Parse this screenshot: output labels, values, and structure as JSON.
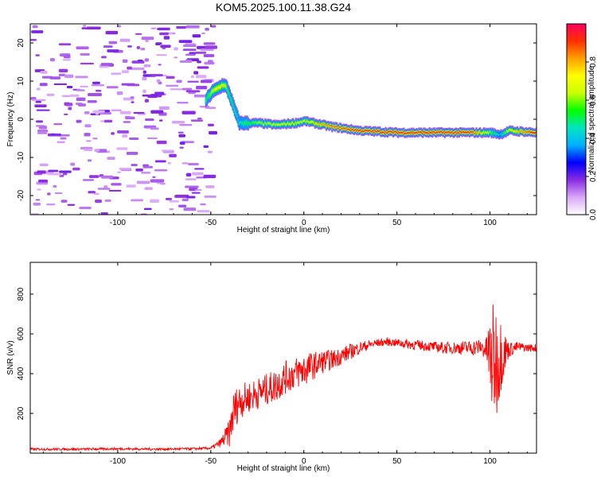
{
  "title": "KOM5.2025.100.11.38.G24",
  "chart_data": [
    {
      "type": "heatmap",
      "xlabel": "Height of straight line (km)",
      "ylabel": "Frequency (Hz)",
      "xlim": [
        -147,
        125
      ],
      "ylim": [
        -25,
        25
      ],
      "xticks": [
        -100,
        -50,
        0,
        50,
        100
      ],
      "yticks": [
        -20,
        -10,
        0,
        10,
        20
      ],
      "grid": false,
      "ridge": {
        "x": [
          -53,
          -50,
          -47,
          -44,
          -42,
          -40,
          -38,
          -35,
          -32,
          -25,
          -15,
          -5,
          0,
          5,
          15,
          30,
          50,
          70,
          90,
          100,
          105,
          110,
          125
        ],
        "y": [
          5,
          7,
          8,
          9,
          8.5,
          6,
          3,
          -1,
          -1,
          -1,
          -1.5,
          -1,
          -0.5,
          -1,
          -2,
          -3,
          -3.5,
          -3.5,
          -3.5,
          -3.5,
          -4,
          -3,
          -3.5
        ],
        "amp": [
          0.5,
          0.6,
          0.75,
          0.7,
          0.6,
          0.5,
          0.5,
          0.45,
          0.5,
          0.6,
          0.65,
          0.7,
          0.65,
          0.75,
          0.85,
          0.9,
          0.9,
          0.9,
          0.9,
          0.6,
          0.4,
          0.7,
          0.95
        ]
      },
      "colorbar": {
        "label": "Normalized spectral amplitude",
        "ticks": [
          0.0,
          0.2,
          0.4,
          0.6,
          0.8
        ],
        "range": [
          0,
          1
        ],
        "colors": [
          "#ffffff",
          "#d8a8f8",
          "#8a2be2",
          "#0000ff",
          "#00b0ff",
          "#00e5c0",
          "#00ff00",
          "#c8ff00",
          "#ffff00",
          "#ffa000",
          "#ff3000",
          "#ff0060"
        ]
      }
    },
    {
      "type": "line",
      "xlabel": "Height of straight line (km)",
      "ylabel": "SNR (v/v)",
      "xlim": [
        -147,
        125
      ],
      "ylim": [
        0,
        960
      ],
      "xticks": [
        -100,
        -50,
        0,
        50,
        100
      ],
      "yticks": [
        200,
        400,
        600,
        800
      ],
      "grid": false,
      "color": "#ff0000",
      "x": [
        -147,
        -120,
        -100,
        -80,
        -60,
        -50,
        -45,
        -40,
        -38,
        -35,
        -30,
        -25,
        -20,
        -15,
        -10,
        -5,
        0,
        5,
        10,
        15,
        20,
        25,
        30,
        35,
        40,
        45,
        50,
        55,
        60,
        65,
        70,
        75,
        80,
        85,
        90,
        95,
        98,
        100,
        102,
        104,
        106,
        110,
        115,
        120,
        125
      ],
      "y": [
        20,
        20,
        22,
        20,
        22,
        25,
        50,
        100,
        200,
        260,
        280,
        300,
        320,
        340,
        380,
        400,
        420,
        440,
        460,
        470,
        490,
        510,
        530,
        545,
        555,
        560,
        555,
        550,
        545,
        540,
        535,
        530,
        530,
        530,
        530,
        535,
        520,
        480,
        460,
        470,
        500,
        520,
        535,
        530,
        530
      ],
      "amp": [
        6,
        6,
        6,
        6,
        6,
        6,
        20,
        70,
        110,
        90,
        80,
        80,
        80,
        85,
        85,
        80,
        90,
        70,
        60,
        50,
        45,
        40,
        30,
        25,
        20,
        20,
        20,
        25,
        25,
        25,
        25,
        30,
        30,
        35,
        40,
        40,
        60,
        230,
        300,
        280,
        180,
        40,
        25,
        20,
        20
      ]
    }
  ]
}
